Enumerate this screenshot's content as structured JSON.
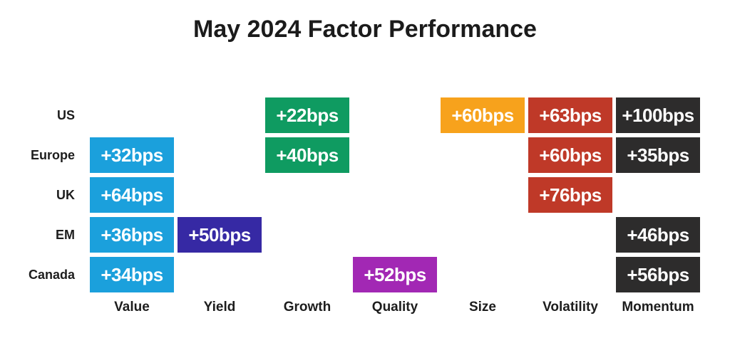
{
  "page": {
    "background": "#ffffff"
  },
  "chart_data": {
    "type": "heatmap",
    "title": "May 2024 Factor Performance",
    "unit": "bps",
    "legend": "none",
    "grid": "off",
    "rows": [
      "US",
      "Europe",
      "UK",
      "EM",
      "Canada"
    ],
    "columns": [
      "Value",
      "Yield",
      "Growth",
      "Quality",
      "Size",
      "Volatility",
      "Momentum"
    ],
    "matrix": [
      [
        null,
        null,
        22,
        null,
        60,
        63,
        100
      ],
      [
        32,
        null,
        40,
        null,
        null,
        60,
        35
      ],
      [
        64,
        null,
        null,
        null,
        null,
        76,
        null
      ],
      [
        36,
        50,
        null,
        null,
        null,
        null,
        46
      ],
      [
        34,
        null,
        null,
        52,
        null,
        null,
        56
      ]
    ],
    "cell_labels": [
      [
        "",
        "",
        "+22bps",
        "",
        "+60bps",
        "+63bps",
        "+100bps"
      ],
      [
        "+32bps",
        "",
        "+40bps",
        "",
        "",
        "+60bps",
        "+35bps"
      ],
      [
        "+64bps",
        "",
        "",
        "",
        "",
        "+76bps",
        ""
      ],
      [
        "+36bps",
        "+50bps",
        "",
        "",
        "",
        "",
        "+46bps"
      ],
      [
        "+34bps",
        "",
        "",
        "+52bps",
        "",
        "",
        "+56bps"
      ]
    ],
    "column_colors": {
      "Value": "#1BA0DC",
      "Yield": "#3629A4",
      "Growth": "#0F9B61",
      "Quality": "#A228B4",
      "Size": "#F7A21C",
      "Volatility": "#BF3928",
      "Momentum": "#2D2C2C"
    },
    "cell_text_color": "#FFFFFF",
    "label_text_color": "#1D1D1D"
  }
}
